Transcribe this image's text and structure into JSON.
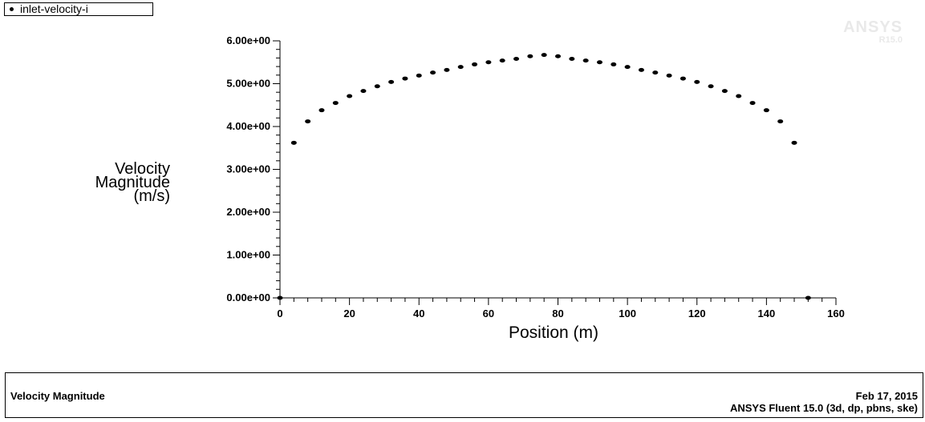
{
  "legend": {
    "label": "inlet-velocity-i"
  },
  "watermark": {
    "brand": "ANSYS",
    "release": "R15.0"
  },
  "footer": {
    "title": "Velocity Magnitude",
    "date": "Feb 17, 2015",
    "product": "ANSYS Fluent 15.0 (3d, dp, pbns, ske)"
  },
  "chart_data": {
    "type": "scatter",
    "xlabel": "Position (m)",
    "ylabel_lines": [
      "Velocity",
      "Magnitude",
      "(m/s)"
    ],
    "xlim": [
      0,
      160
    ],
    "ylim": [
      0,
      6
    ],
    "x_ticks": [
      "0",
      "20",
      "40",
      "60",
      "80",
      "100",
      "120",
      "140",
      "160"
    ],
    "y_ticks": [
      "0.00e+00",
      "1.00e+00",
      "2.00e+00",
      "3.00e+00",
      "4.00e+00",
      "5.00e+00",
      "6.00e+00"
    ],
    "marker_color": "#000000",
    "series": [
      {
        "name": "inlet-velocity-i",
        "points": [
          [
            0,
            0.0
          ],
          [
            4,
            3.62
          ],
          [
            8,
            4.12
          ],
          [
            12,
            4.38
          ],
          [
            16,
            4.55
          ],
          [
            20,
            4.71
          ],
          [
            24,
            4.83
          ],
          [
            28,
            4.94
          ],
          [
            32,
            5.04
          ],
          [
            36,
            5.12
          ],
          [
            40,
            5.19
          ],
          [
            44,
            5.26
          ],
          [
            48,
            5.32
          ],
          [
            52,
            5.39
          ],
          [
            56,
            5.45
          ],
          [
            60,
            5.5
          ],
          [
            64,
            5.54
          ],
          [
            68,
            5.58
          ],
          [
            72,
            5.64
          ],
          [
            76,
            5.67
          ],
          [
            80,
            5.64
          ],
          [
            84,
            5.58
          ],
          [
            88,
            5.54
          ],
          [
            92,
            5.5
          ],
          [
            96,
            5.45
          ],
          [
            100,
            5.39
          ],
          [
            104,
            5.32
          ],
          [
            108,
            5.26
          ],
          [
            112,
            5.19
          ],
          [
            116,
            5.12
          ],
          [
            120,
            5.04
          ],
          [
            124,
            4.94
          ],
          [
            128,
            4.83
          ],
          [
            132,
            4.71
          ],
          [
            136,
            4.55
          ],
          [
            140,
            4.38
          ],
          [
            144,
            4.12
          ],
          [
            148,
            3.62
          ],
          [
            152,
            0.0
          ]
        ]
      }
    ]
  }
}
